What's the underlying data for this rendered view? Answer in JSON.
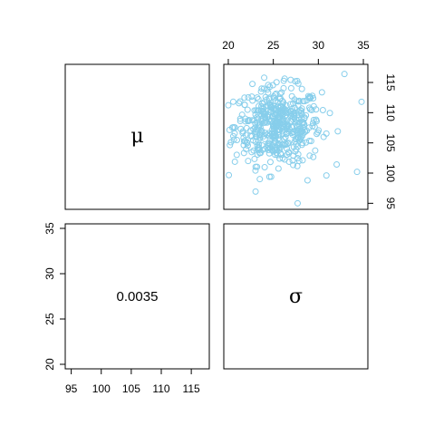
{
  "chart_data": {
    "type": "scatter",
    "layout": "pairs",
    "variables": [
      "μ",
      "σ"
    ],
    "diagonal_labels": {
      "mu": "μ",
      "sigma": "σ"
    },
    "correlation_label": "0.0035",
    "correlation": 0.0035,
    "point_color": "#87CEEB",
    "point_count": 500,
    "axes": {
      "mu": {
        "range": [
          94,
          118
        ],
        "ticks": [
          95,
          100,
          105,
          110,
          115
        ],
        "tick_labels": [
          "95",
          "100",
          "105",
          "110",
          "115"
        ]
      },
      "sigma": {
        "range": [
          19.5,
          35.5
        ],
        "ticks": [
          20,
          25,
          30,
          35
        ],
        "tick_labels": [
          "20",
          "25",
          "30",
          "35"
        ]
      }
    },
    "scatter": {
      "x_variable": "σ",
      "y_variable": "μ",
      "x_mean": 25.5,
      "x_sd": 2.4,
      "y_mean": 107.8,
      "y_sd": 3.2,
      "notable_points": [
        {
          "x": 27.7,
          "y": 95.0
        },
        {
          "x": 34.8,
          "y": 111.8
        },
        {
          "x": 34.3,
          "y": 100.2
        },
        {
          "x": 32.9,
          "y": 116.4
        },
        {
          "x": 19.8,
          "y": 107.0
        },
        {
          "x": 23.5,
          "y": 99.0
        },
        {
          "x": 28.8,
          "y": 98.8
        }
      ]
    }
  }
}
